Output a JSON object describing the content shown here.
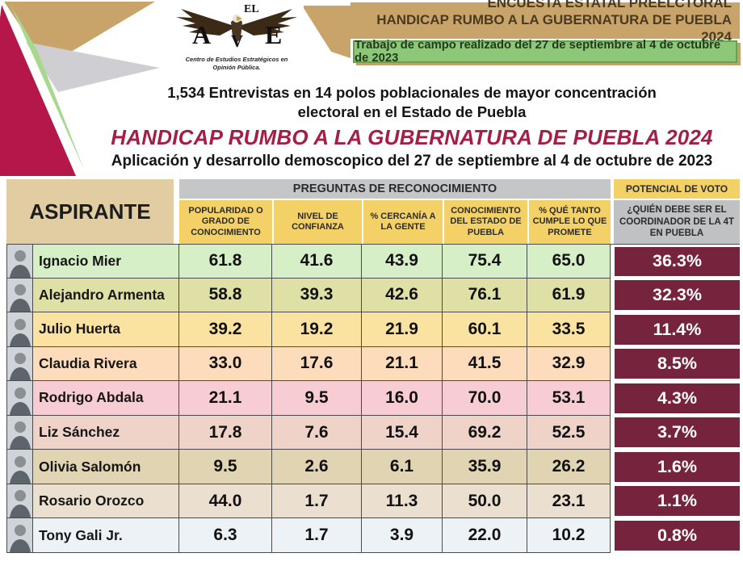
{
  "logo": {
    "el": "EL",
    "a": "A",
    "v": "V",
    "e": "E",
    "tagline1": "Centro de Estudios Estratégicos en",
    "tagline2": "Opinión Pública."
  },
  "header": {
    "title_line1": "ENCUESTA ESTATAL PREELCTORAL",
    "title_line2": "HANDICAP RUMBO A LA GUBERNATURA DE PUEBLA 2024",
    "fieldwork_note": "Trabajo de campo realizado del 27 de septiembre al 4 de octubre de 2023"
  },
  "intro": {
    "line1": "1,534 Entrevistas en 14 polos poblacionales de mayor concentración",
    "line2": "electoral en el Estado de Puebla",
    "main_title": "HANDICAP RUMBO A LA GUBERNATURA DE PUEBLA 2024",
    "subtitle": "Aplicación y desarrollo demoscopico del 27 de septiembre al 4 de octubre de 2023"
  },
  "colors": {
    "tan": "#c9a46a",
    "green": "#8dc878",
    "crimson": "#b5174a",
    "title_maroon": "#a41e45",
    "vote_cell_maroon": "#76243e",
    "header_tan_cell": "#e2cda2",
    "header_gray": "#c5c6c8",
    "header_yellow": "#f3d166"
  },
  "table": {
    "aspirante_header": "ASPIRANTE",
    "group_header": "PREGUNTAS DE RECONOCIMIENTO",
    "vote_header": "POTENCIAL DE VOTO",
    "columns": [
      "POPULARIDAD O GRADO DE CONOCIMIENTO",
      "NIVEL DE CONFIANZA",
      "% CERCANÍA A LA GENTE",
      "CONOCIMIENTO DEL ESTADO DE PUEBLA",
      "% QUÉ TANTO CUMPLE LO QUE PROMETE"
    ],
    "vote_subheader": "¿QUIÉN DEBE SER EL COORDINADOR DE LA 4T EN PUEBLA",
    "rows": [
      {
        "name": "Ignacio Mier",
        "values": [
          "61.8",
          "41.6",
          "43.9",
          "75.4",
          "65.0"
        ],
        "vote": "36.3%",
        "row_color": "#d6efc6"
      },
      {
        "name": "Alejandro Armenta",
        "values": [
          "58.8",
          "39.3",
          "42.6",
          "76.1",
          "61.9"
        ],
        "vote": "32.3%",
        "row_color": "#dfe0a6"
      },
      {
        "name": "Julio Huerta",
        "values": [
          "39.2",
          "19.2",
          "21.9",
          "60.1",
          "33.5"
        ],
        "vote": "11.4%",
        "row_color": "#fae2a0"
      },
      {
        "name": "Claudia Rivera",
        "values": [
          "33.0",
          "17.6",
          "21.1",
          "41.5",
          "32.9"
        ],
        "vote": "8.5%",
        "row_color": "#fcdcba"
      },
      {
        "name": "Rodrigo Abdala",
        "values": [
          "21.1",
          "9.5",
          "16.0",
          "70.0",
          "53.1"
        ],
        "vote": "4.3%",
        "row_color": "#f8ccd3"
      },
      {
        "name": "Liz Sánchez",
        "values": [
          "17.8",
          "7.6",
          "15.4",
          "69.2",
          "52.5"
        ],
        "vote": "3.7%",
        "row_color": "#efd3c8"
      },
      {
        "name": "Olivia Salomón",
        "values": [
          "9.5",
          "2.6",
          "6.1",
          "35.9",
          "26.2"
        ],
        "vote": "1.6%",
        "row_color": "#e0d4b2"
      },
      {
        "name": "Rosario Orozco",
        "values": [
          "44.0",
          "1.7",
          "11.3",
          "50.0",
          "23.1"
        ],
        "vote": "1.1%",
        "row_color": "#ebdfd0"
      },
      {
        "name": "Tony Gali Jr.",
        "values": [
          "6.3",
          "1.7",
          "3.9",
          "22.0",
          "10.2"
        ],
        "vote": "0.8%",
        "row_color": "#edf2f7"
      }
    ]
  },
  "chart_data": {
    "type": "table",
    "title": "HANDICAP RUMBO A LA GUBERNATURA DE PUEBLA 2024",
    "subtitle": "Encuesta estatal preelectoral, 1,534 entrevistas, 27 de septiembre al 4 de octubre de 2023",
    "columns": [
      "Popularidad o grado de conocimiento",
      "Nivel de confianza",
      "% Cercanía a la gente",
      "Conocimiento del Estado de Puebla",
      "% Qué tanto cumple lo que promete",
      "Potencial de voto: ¿Quién debe ser el coordinador de la 4T en Puebla (%)"
    ],
    "rows": [
      {
        "aspirante": "Ignacio Mier",
        "values": [
          61.8,
          41.6,
          43.9,
          75.4,
          65.0
        ],
        "potencial_voto_pct": 36.3
      },
      {
        "aspirante": "Alejandro Armenta",
        "values": [
          58.8,
          39.3,
          42.6,
          76.1,
          61.9
        ],
        "potencial_voto_pct": 32.3
      },
      {
        "aspirante": "Julio Huerta",
        "values": [
          39.2,
          19.2,
          21.9,
          60.1,
          33.5
        ],
        "potencial_voto_pct": 11.4
      },
      {
        "aspirante": "Claudia Rivera",
        "values": [
          33.0,
          17.6,
          21.1,
          41.5,
          32.9
        ],
        "potencial_voto_pct": 8.5
      },
      {
        "aspirante": "Rodrigo Abdala",
        "values": [
          21.1,
          9.5,
          16.0,
          70.0,
          53.1
        ],
        "potencial_voto_pct": 4.3
      },
      {
        "aspirante": "Liz Sánchez",
        "values": [
          17.8,
          7.6,
          15.4,
          69.2,
          52.5
        ],
        "potencial_voto_pct": 3.7
      },
      {
        "aspirante": "Olivia Salomón",
        "values": [
          9.5,
          2.6,
          6.1,
          35.9,
          26.2
        ],
        "potencial_voto_pct": 1.6
      },
      {
        "aspirante": "Rosario Orozco",
        "values": [
          44.0,
          1.7,
          11.3,
          50.0,
          23.1
        ],
        "potencial_voto_pct": 1.1
      },
      {
        "aspirante": "Tony Gali Jr.",
        "values": [
          6.3,
          1.7,
          3.9,
          22.0,
          10.2
        ],
        "potencial_voto_pct": 0.8
      }
    ]
  }
}
